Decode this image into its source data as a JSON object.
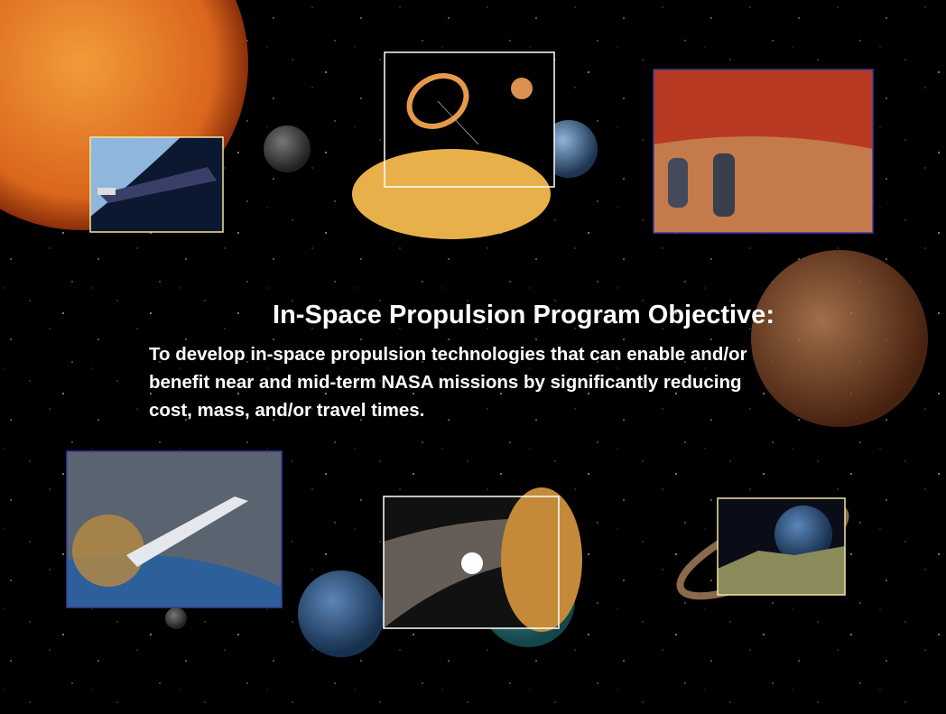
{
  "slide": {
    "title": "In-Space Propulsion Program Objective:",
    "body_lines": [
      "To develop in-space propulsion technologies that can enable and/or",
      "benefit near and mid-term NASA missions by significantly reducing",
      "cost, mass, and/or travel times."
    ]
  }
}
